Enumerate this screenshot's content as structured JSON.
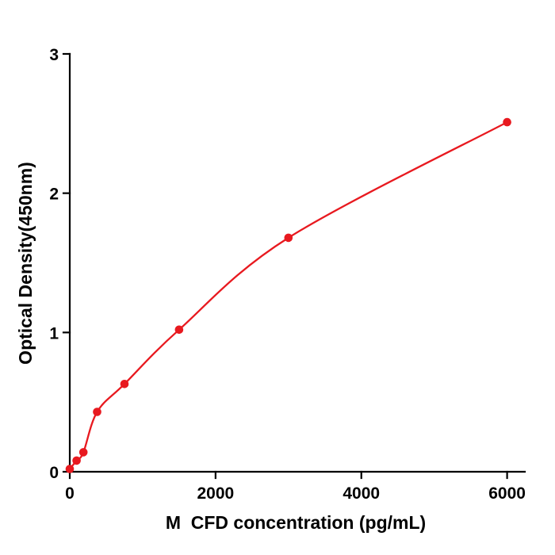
{
  "chart_data": {
    "type": "scatter",
    "title": "",
    "xlabel": "M  CFD concentration (pg/mL)",
    "ylabel": "Optical Density(450nm)",
    "x": [
      0,
      93.75,
      187.5,
      375,
      750,
      1500,
      3000,
      6000
    ],
    "y": [
      0.02,
      0.08,
      0.14,
      0.43,
      0.63,
      1.02,
      1.68,
      2.51
    ],
    "xlim": [
      0,
      6200
    ],
    "ylim": [
      0,
      3
    ],
    "x_ticks": [
      0,
      2000,
      4000,
      6000
    ],
    "y_ticks": [
      0,
      1,
      2,
      3
    ],
    "marker_color": "#e8191f",
    "line_color": "#e8191f",
    "curve": "smooth-fit-through-points",
    "grid": false,
    "legend": null,
    "background": "#ffffff"
  }
}
